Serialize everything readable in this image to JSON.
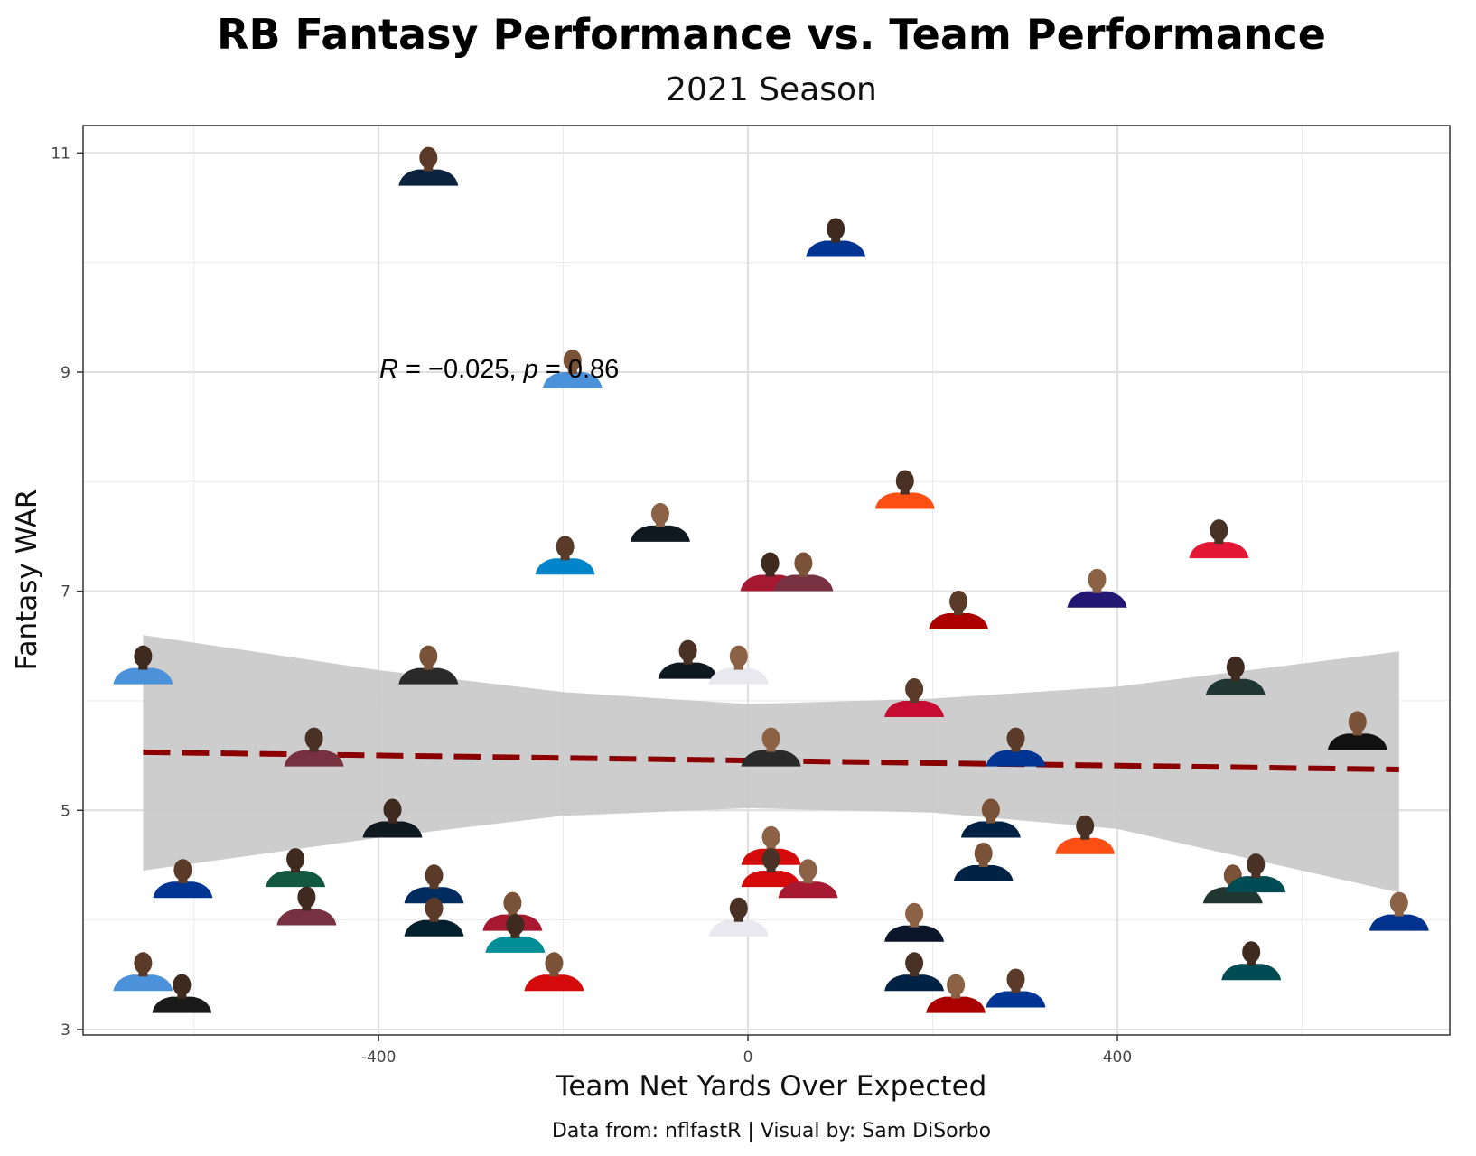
{
  "chart_data": {
    "type": "scatter",
    "title": "RB Fantasy Performance vs. Team Performance",
    "subtitle": "2021 Season",
    "xlabel": "Team Net Yards Over Expected",
    "ylabel": "Fantasy WAR",
    "caption": "Data from: nflfastR | Visual by: Sam DiSorbo",
    "annotation": {
      "r_symbol": "R",
      "r_text": " = −0.025, ",
      "p_symbol": "p",
      "p_text": " = 0.86"
    },
    "xlim": [
      -720,
      760
    ],
    "ylim": [
      2.95,
      11.25
    ],
    "x_ticks": [
      {
        "value": -400,
        "label": "-400"
      },
      {
        "value": 0,
        "label": "0"
      },
      {
        "value": 400,
        "label": "400"
      }
    ],
    "x_minor": [
      -600,
      -200,
      200,
      600
    ],
    "y_ticks": [
      {
        "value": 3,
        "label": "3"
      },
      {
        "value": 5,
        "label": "5"
      },
      {
        "value": 7,
        "label": "7"
      },
      {
        "value": 9,
        "label": "9"
      },
      {
        "value": 11,
        "label": "11"
      }
    ],
    "y_minor": [
      4,
      6,
      8,
      10
    ],
    "grid": true,
    "trend": {
      "style": "dashed",
      "x_range": [
        -655,
        705
      ],
      "slope": -0.000116,
      "intercept": 5.455,
      "color": "#8B0000"
    },
    "ribbon": {
      "color": "#c8c8c8",
      "points": [
        {
          "x": -655,
          "lower": 4.45,
          "upper": 6.6
        },
        {
          "x": -400,
          "lower": 4.75,
          "upper": 6.28
        },
        {
          "x": -200,
          "lower": 4.95,
          "upper": 6.08
        },
        {
          "x": 0,
          "lower": 5.02,
          "upper": 5.97
        },
        {
          "x": 200,
          "lower": 4.98,
          "upper": 6.02
        },
        {
          "x": 400,
          "lower": 4.83,
          "upper": 6.13
        },
        {
          "x": 705,
          "lower": 4.25,
          "upper": 6.45
        }
      ]
    },
    "points": [
      {
        "x": -346,
        "y": 10.8,
        "jersey": "#0c2340"
      },
      {
        "x": 95,
        "y": 10.15,
        "jersey": "#003594"
      },
      {
        "x": -190,
        "y": 8.95,
        "jersey": "#4b92db"
      },
      {
        "x": 170,
        "y": 7.85,
        "jersey": "#fb4f14"
      },
      {
        "x": -95,
        "y": 7.55,
        "jersey": "#101820"
      },
      {
        "x": -198,
        "y": 7.25,
        "jersey": "#0085ca"
      },
      {
        "x": 24,
        "y": 7.1,
        "jersey": "#a71930"
      },
      {
        "x": 60,
        "y": 7.1,
        "jersey": "#773141"
      },
      {
        "x": 510,
        "y": 7.4,
        "jersey": "#e31837"
      },
      {
        "x": 378,
        "y": 6.95,
        "jersey": "#241773"
      },
      {
        "x": 228,
        "y": 6.75,
        "jersey": "#aa0000"
      },
      {
        "x": -655,
        "y": 6.25,
        "jersey": "#4b92db"
      },
      {
        "x": -346,
        "y": 6.25,
        "jersey": "#2a2a2a"
      },
      {
        "x": -65,
        "y": 6.3,
        "jersey": "#101820"
      },
      {
        "x": -10,
        "y": 6.25,
        "jersey": "#e8e8ee"
      },
      {
        "x": 180,
        "y": 5.95,
        "jersey": "#c60c30"
      },
      {
        "x": 528,
        "y": 6.15,
        "jersey": "#203731"
      },
      {
        "x": 660,
        "y": 5.65,
        "jersey": "#111111"
      },
      {
        "x": -470,
        "y": 5.5,
        "jersey": "#773141"
      },
      {
        "x": 25,
        "y": 5.5,
        "jersey": "#2a2a2a"
      },
      {
        "x": 290,
        "y": 5.5,
        "jersey": "#003594"
      },
      {
        "x": -385,
        "y": 4.85,
        "jersey": "#101820"
      },
      {
        "x": 263,
        "y": 4.85,
        "jersey": "#002244"
      },
      {
        "x": 365,
        "y": 4.7,
        "jersey": "#fb4f14"
      },
      {
        "x": 25,
        "y": 4.6,
        "jersey": "#d50a0a"
      },
      {
        "x": -612,
        "y": 4.3,
        "jersey": "#003594"
      },
      {
        "x": -490,
        "y": 4.4,
        "jersey": "#125740"
      },
      {
        "x": 255,
        "y": 4.45,
        "jersey": "#002244"
      },
      {
        "x": 25,
        "y": 4.4,
        "jersey": "#d50a0a"
      },
      {
        "x": 65,
        "y": 4.3,
        "jersey": "#a71930"
      },
      {
        "x": -340,
        "y": 4.25,
        "jersey": "#002c5f"
      },
      {
        "x": -478,
        "y": 4.05,
        "jersey": "#773141"
      },
      {
        "x": -255,
        "y": 4.0,
        "jersey": "#a71930"
      },
      {
        "x": -10,
        "y": 3.95,
        "jersey": "#e8e8ee"
      },
      {
        "x": 180,
        "y": 3.9,
        "jersey": "#0b162a"
      },
      {
        "x": -340,
        "y": 3.95,
        "jersey": "#03202f"
      },
      {
        "x": -252,
        "y": 3.8,
        "jersey": "#008e97"
      },
      {
        "x": 525,
        "y": 4.25,
        "jersey": "#203731"
      },
      {
        "x": 550,
        "y": 4.35,
        "jersey": "#004c54"
      },
      {
        "x": 705,
        "y": 4.0,
        "jersey": "#00338d"
      },
      {
        "x": -655,
        "y": 3.45,
        "jersey": "#4b92db"
      },
      {
        "x": -613,
        "y": 3.25,
        "jersey": "#1a1a1a"
      },
      {
        "x": -210,
        "y": 3.45,
        "jersey": "#d50a0a"
      },
      {
        "x": 180,
        "y": 3.45,
        "jersey": "#002244"
      },
      {
        "x": 225,
        "y": 3.25,
        "jersey": "#aa0000"
      },
      {
        "x": 290,
        "y": 3.3,
        "jersey": "#003594"
      },
      {
        "x": 545,
        "y": 3.55,
        "jersey": "#004c54"
      }
    ]
  }
}
